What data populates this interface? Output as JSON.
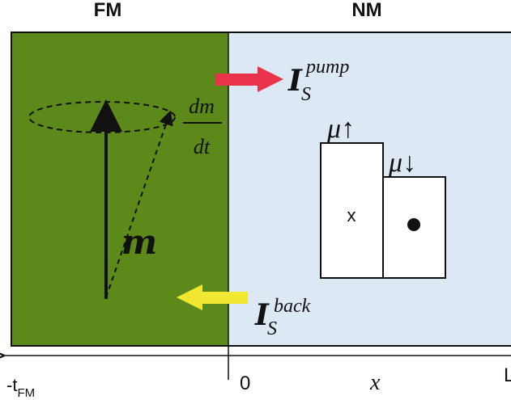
{
  "labels": {
    "fm_header": "FM",
    "nm_header": "NM",
    "magnetization": "m",
    "dm": "dm",
    "dt": "dt",
    "i_pump_main": "I",
    "i_pump_sub": "S",
    "i_pump_sup": "pump",
    "i_back_main": "I",
    "i_back_sub": "S",
    "i_back_sup": "back",
    "mu_up": "μ↑",
    "mu_down": "μ↓",
    "cross_mark": "x",
    "axis_neg_t": "-t",
    "axis_neg_t_sub": "FM",
    "axis_zero": "0",
    "axis_x": "x",
    "axis_right_partial": "L"
  },
  "colors": {
    "fm_region": "#5c8a1a",
    "nm_region": "#dce8f4",
    "pump_arrow": "#e8334a",
    "back_arrow": "#f2e832",
    "outline": "#111111"
  },
  "icons": {
    "pump_arrow": "arrow-right",
    "back_arrow": "arrow-left",
    "dot_symbol": "filled-circle"
  }
}
